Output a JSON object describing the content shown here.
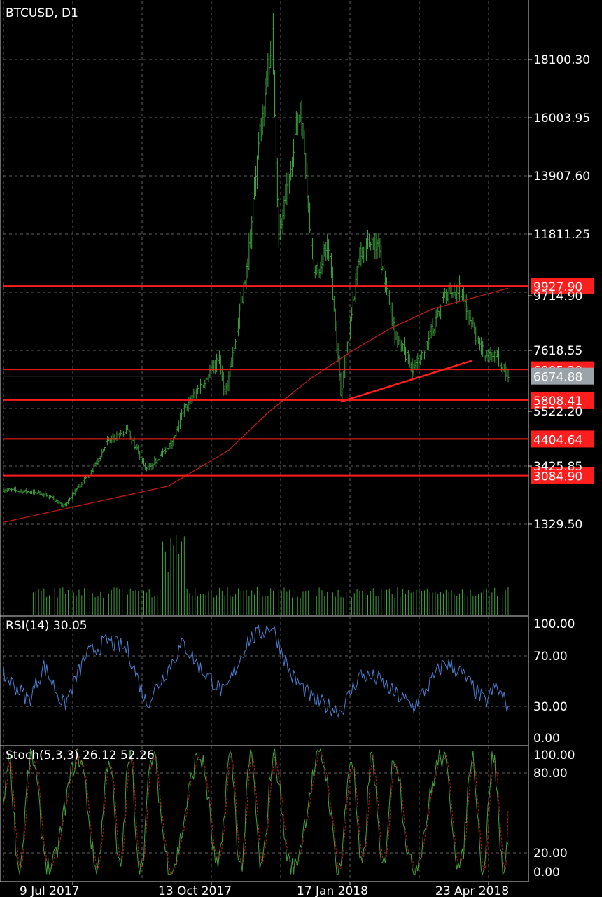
{
  "chart_data": [
    {
      "type": "candlestick",
      "title": "BTCUSD, D1",
      "x_tick_labels": [
        "9 Jul 2017",
        "13 Oct 2017",
        "17 Jan 2018",
        "23 Apr 2018"
      ],
      "y_tick_labels": [
        "18100.30",
        "16003.95",
        "13907.60",
        "11811.25",
        "9714.90",
        "7618.55",
        "5522.20",
        "3425.85",
        "1329.50"
      ],
      "ylim": [
        0,
        19000
      ],
      "grid": true,
      "current_price": {
        "label": "6674.88",
        "value": 6674.88
      },
      "hidden_price_tag": {
        "label": "6905.20",
        "value": 6905.2
      },
      "horizontal_levels": [
        {
          "label": "9927.90",
          "value": 9927.9,
          "color": "#ff1e1e"
        },
        {
          "label": "5808.41",
          "value": 5808.41,
          "color": "#ff1e1e"
        },
        {
          "label": "4404.64",
          "value": 4404.64,
          "color": "#ff1e1e"
        },
        {
          "label": "3084.90",
          "value": 3084.9,
          "color": "#ff1e1e"
        }
      ],
      "trendline": {
        "start": {
          "x": "2018-02-06",
          "y": 5750
        },
        "end": {
          "x": "2018-05-14",
          "y": 7230
        },
        "color": "#ff1e1e"
      },
      "close_series": [
        {
          "x": "2017-06-01",
          "y": 2580
        },
        {
          "x": "2017-06-20",
          "y": 2500
        },
        {
          "x": "2017-07-01",
          "y": 2430
        },
        {
          "x": "2017-07-16",
          "y": 2000
        },
        {
          "x": "2017-07-25",
          "y": 2600
        },
        {
          "x": "2017-08-05",
          "y": 3200
        },
        {
          "x": "2017-08-17",
          "y": 4300
        },
        {
          "x": "2017-09-01",
          "y": 4700
        },
        {
          "x": "2017-09-15",
          "y": 3300
        },
        {
          "x": "2017-09-25",
          "y": 3800
        },
        {
          "x": "2017-10-05",
          "y": 4400
        },
        {
          "x": "2017-10-12",
          "y": 5400
        },
        {
          "x": "2017-10-20",
          "y": 6000
        },
        {
          "x": "2017-11-01",
          "y": 6800
        },
        {
          "x": "2017-11-08",
          "y": 7300
        },
        {
          "x": "2017-11-12",
          "y": 6000
        },
        {
          "x": "2017-11-20",
          "y": 8000
        },
        {
          "x": "2017-11-29",
          "y": 10800
        },
        {
          "x": "2017-12-07",
          "y": 15000
        },
        {
          "x": "2017-12-17",
          "y": 19000
        },
        {
          "x": "2017-12-22",
          "y": 11800
        },
        {
          "x": "2017-12-31",
          "y": 14000
        },
        {
          "x": "2018-01-07",
          "y": 16500
        },
        {
          "x": "2018-01-17",
          "y": 10200
        },
        {
          "x": "2018-01-28",
          "y": 11500
        },
        {
          "x": "2018-02-06",
          "y": 6000
        },
        {
          "x": "2018-02-20",
          "y": 11200
        },
        {
          "x": "2018-03-05",
          "y": 11500
        },
        {
          "x": "2018-03-18",
          "y": 8200
        },
        {
          "x": "2018-04-01",
          "y": 6900
        },
        {
          "x": "2018-04-12",
          "y": 8000
        },
        {
          "x": "2018-04-24",
          "y": 9600
        },
        {
          "x": "2018-05-05",
          "y": 9800
        },
        {
          "x": "2018-05-15",
          "y": 8300
        },
        {
          "x": "2018-05-24",
          "y": 7400
        },
        {
          "x": "2018-06-01",
          "y": 7500
        },
        {
          "x": "2018-06-10",
          "y": 6674.88
        }
      ],
      "moving_average": [
        {
          "x": "2017-06-01",
          "y": 1400
        },
        {
          "x": "2017-08-01",
          "y": 2050
        },
        {
          "x": "2017-10-01",
          "y": 2700
        },
        {
          "x": "2017-11-15",
          "y": 4000
        },
        {
          "x": "2017-12-15",
          "y": 5400
        },
        {
          "x": "2018-01-15",
          "y": 6600
        },
        {
          "x": "2018-02-15",
          "y": 7600
        },
        {
          "x": "2018-03-15",
          "y": 8400
        },
        {
          "x": "2018-04-15",
          "y": 9100
        },
        {
          "x": "2018-05-15",
          "y": 9500
        },
        {
          "x": "2018-06-10",
          "y": 9850
        }
      ],
      "colors": {
        "candle": "#3ea33e",
        "ma": "#c01818",
        "level": "#ff1e1e",
        "grid": "#606060",
        "price_tag": "#9aa3aa"
      }
    },
    {
      "type": "line",
      "title": "RSI(14) 30.05",
      "y_tick_labels": [
        "100.00",
        "70.00",
        "30.00",
        "0.00"
      ],
      "ylim": [
        0,
        100
      ],
      "levels": [
        70,
        30
      ],
      "color": "#4a7fd0",
      "series": [
        {
          "x": "2017-06-01",
          "y": 55
        },
        {
          "x": "2017-06-20",
          "y": 35
        },
        {
          "x": "2017-07-01",
          "y": 62
        },
        {
          "x": "2017-07-16",
          "y": 30
        },
        {
          "x": "2017-08-01",
          "y": 70
        },
        {
          "x": "2017-08-17",
          "y": 82
        },
        {
          "x": "2017-09-01",
          "y": 75
        },
        {
          "x": "2017-09-15",
          "y": 32
        },
        {
          "x": "2017-10-01",
          "y": 60
        },
        {
          "x": "2017-10-12",
          "y": 80
        },
        {
          "x": "2017-10-25",
          "y": 60
        },
        {
          "x": "2017-11-12",
          "y": 40
        },
        {
          "x": "2017-11-29",
          "y": 82
        },
        {
          "x": "2017-12-17",
          "y": 94
        },
        {
          "x": "2017-12-31",
          "y": 55
        },
        {
          "x": "2018-01-17",
          "y": 35
        },
        {
          "x": "2018-02-06",
          "y": 26
        },
        {
          "x": "2018-02-20",
          "y": 55
        },
        {
          "x": "2018-03-05",
          "y": 52
        },
        {
          "x": "2018-03-18",
          "y": 40
        },
        {
          "x": "2018-04-01",
          "y": 30
        },
        {
          "x": "2018-04-24",
          "y": 65
        },
        {
          "x": "2018-05-05",
          "y": 58
        },
        {
          "x": "2018-05-24",
          "y": 33
        },
        {
          "x": "2018-06-01",
          "y": 46
        },
        {
          "x": "2018-06-10",
          "y": 30.05
        }
      ]
    },
    {
      "type": "line",
      "title": "Stoch(5,3,3) 26.12 52.26",
      "y_tick_labels": [
        "100.00",
        "80.00",
        "20.00",
        "0.00"
      ],
      "ylim": [
        0,
        100
      ],
      "levels": [
        80,
        20
      ],
      "series": [
        {
          "name": "main",
          "color": "#3ea33e",
          "values_from": "oscillator"
        },
        {
          "name": "signal",
          "color": "#c01818",
          "values_from": "oscillator"
        }
      ],
      "last_values": {
        "main": 26.12,
        "signal": 52.26
      }
    }
  ]
}
